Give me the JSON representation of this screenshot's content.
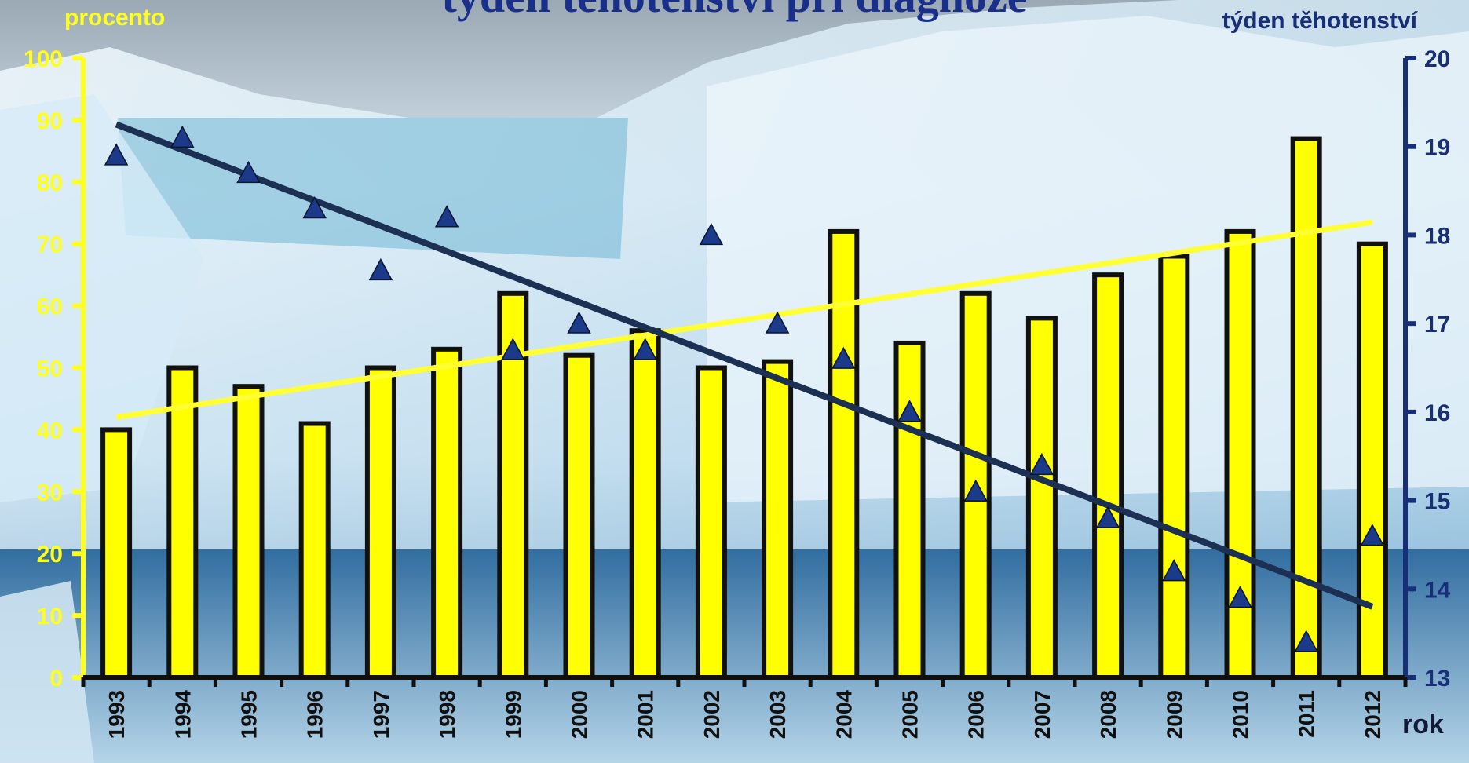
{
  "chart_data": {
    "type": "bar",
    "title": "týden těhotenství při diagnóze",
    "left_axis_label": "procento",
    "right_axis_label": "týden těhotenství",
    "xlabel": "rok",
    "categories": [
      "1993",
      "1994",
      "1995",
      "1996",
      "1997",
      "1998",
      "1999",
      "2000",
      "2001",
      "2002",
      "2003",
      "2004",
      "2005",
      "2006",
      "2007",
      "2008",
      "2009",
      "2010",
      "2011",
      "2012"
    ],
    "left_axis": {
      "min": 0,
      "max": 100,
      "ticks": [
        0,
        10,
        20,
        30,
        40,
        50,
        60,
        70,
        80,
        90,
        100
      ]
    },
    "right_axis": {
      "min": 13,
      "max": 20,
      "ticks": [
        13,
        14,
        15,
        16,
        17,
        18,
        19,
        20
      ]
    },
    "series": [
      {
        "type": "bar",
        "axis": "left",
        "values": [
          40,
          50,
          47,
          41,
          50,
          53,
          62,
          52,
          56,
          50,
          51,
          72,
          54,
          62,
          58,
          65,
          68,
          72,
          87,
          70
        ]
      },
      {
        "type": "scatter",
        "axis": "right",
        "marker": "triangle",
        "values": [
          18.9,
          19.1,
          18.7,
          18.3,
          17.6,
          18.2,
          16.7,
          17.0,
          16.7,
          18.0,
          17.0,
          16.6,
          16.0,
          15.1,
          15.4,
          14.8,
          14.2,
          13.9,
          13.4,
          14.6
        ]
      },
      {
        "type": "trendline",
        "axis": "left",
        "of_series": 0,
        "start": 42,
        "end": 73.5
      },
      {
        "type": "trendline",
        "axis": "right",
        "of_series": 1,
        "start": 19.25,
        "end": 13.8
      }
    ],
    "colors": {
      "bar_fill": "#ffff00",
      "bar_stroke": "#111111",
      "bar_trend": "#ffff33",
      "marker_fill": "#1b3a8a",
      "week_trend": "#1c3054",
      "left_axis": "#ffff1e",
      "right_axis": "#182f78"
    },
    "grid": false,
    "legend": "none"
  }
}
